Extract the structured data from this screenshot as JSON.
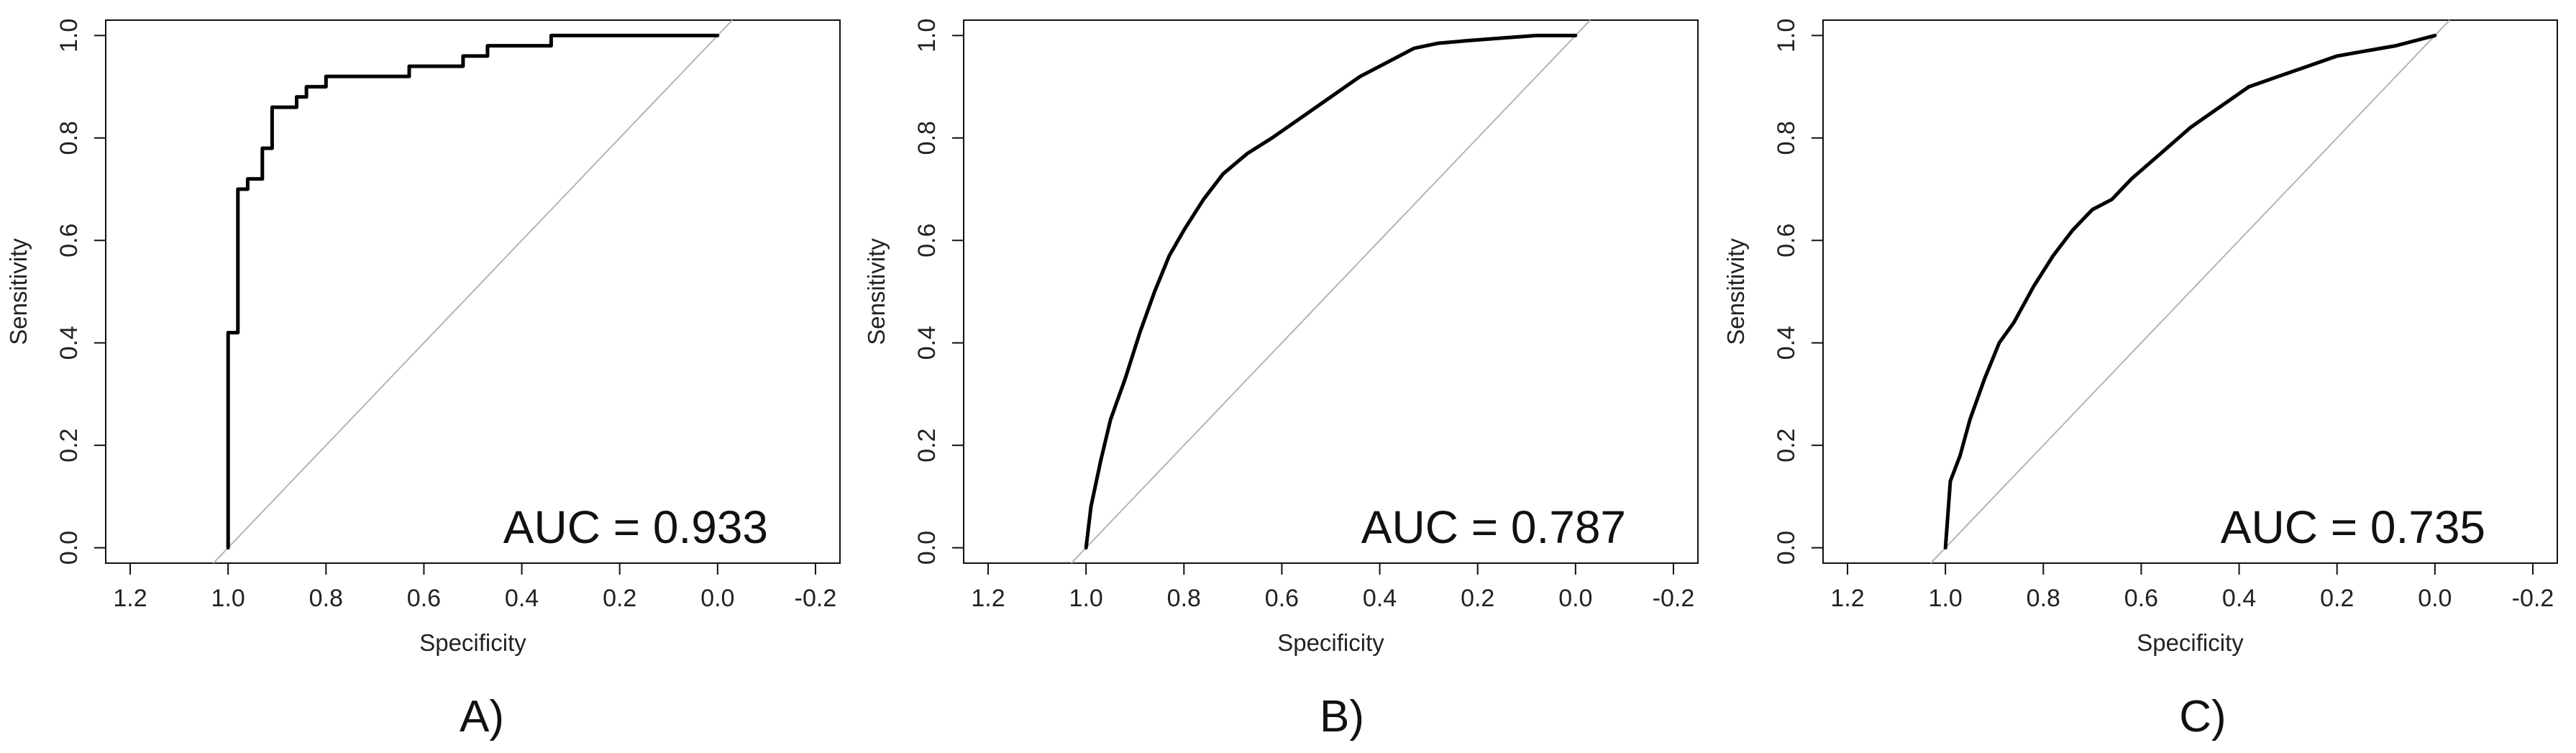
{
  "chart_data": [
    {
      "type": "line",
      "panel_label": "A)",
      "xlabel": "Specificity",
      "ylabel": "Sensitivity",
      "xlim": [
        1.25,
        -0.25
      ],
      "ylim": [
        -0.03,
        1.03
      ],
      "x_reversed": true,
      "xticks": [
        "1.2",
        "1.0",
        "0.8",
        "0.6",
        "0.4",
        "0.2",
        "0.0",
        "-0.2"
      ],
      "yticks": [
        "0.0",
        "0.2",
        "0.4",
        "0.6",
        "0.8",
        "1.0"
      ],
      "annotation": "AUC = 0.933",
      "auc": 0.933,
      "grid": false,
      "step": true,
      "series": [
        {
          "x": [
            1.0,
            1.0,
            0.98,
            0.98,
            0.96,
            0.96,
            0.93,
            0.93,
            0.91,
            0.91,
            0.86,
            0.86,
            0.84,
            0.84,
            0.8,
            0.8,
            0.63,
            0.63,
            0.52,
            0.52,
            0.47,
            0.47,
            0.34,
            0.34,
            0.0
          ],
          "y": [
            0.0,
            0.42,
            0.42,
            0.7,
            0.7,
            0.72,
            0.72,
            0.78,
            0.78,
            0.86,
            0.86,
            0.88,
            0.88,
            0.9,
            0.9,
            0.92,
            0.92,
            0.94,
            0.94,
            0.96,
            0.96,
            0.98,
            0.98,
            1.0,
            1.0
          ]
        }
      ],
      "reference_line": true
    },
    {
      "type": "line",
      "panel_label": "B)",
      "xlabel": "Specificity",
      "ylabel": "Sensitivity",
      "xlim": [
        1.25,
        -0.25
      ],
      "ylim": [
        -0.03,
        1.03
      ],
      "x_reversed": true,
      "xticks": [
        "1.2",
        "1.0",
        "0.8",
        "0.6",
        "0.4",
        "0.2",
        "0.0",
        "-0.2"
      ],
      "yticks": [
        "0.0",
        "0.2",
        "0.4",
        "0.6",
        "0.8",
        "1.0"
      ],
      "annotation": "AUC = 0.787",
      "auc": 0.787,
      "grid": false,
      "step": false,
      "series": [
        {
          "x": [
            1.0,
            0.99,
            0.97,
            0.95,
            0.92,
            0.89,
            0.86,
            0.83,
            0.8,
            0.76,
            0.72,
            0.67,
            0.62,
            0.56,
            0.5,
            0.44,
            0.38,
            0.33,
            0.28,
            0.22,
            0.15,
            0.08,
            0.0
          ],
          "y": [
            0.0,
            0.08,
            0.17,
            0.25,
            0.33,
            0.42,
            0.5,
            0.57,
            0.62,
            0.68,
            0.73,
            0.77,
            0.8,
            0.84,
            0.88,
            0.92,
            0.95,
            0.975,
            0.985,
            0.99,
            0.995,
            1.0,
            1.0
          ]
        }
      ],
      "reference_line": true
    },
    {
      "type": "line",
      "panel_label": "C)",
      "xlabel": "Specificity",
      "ylabel": "Sensitivity",
      "xlim": [
        1.25,
        -0.25
      ],
      "ylim": [
        -0.03,
        1.03
      ],
      "x_reversed": true,
      "xticks": [
        "1.2",
        "1.0",
        "0.8",
        "0.6",
        "0.4",
        "0.2",
        "0.0",
        "-0.2"
      ],
      "yticks": [
        "0.0",
        "0.2",
        "0.4",
        "0.6",
        "0.8",
        "1.0"
      ],
      "annotation": "AUC = 0.735",
      "auc": 0.735,
      "grid": false,
      "step": false,
      "series": [
        {
          "x": [
            1.0,
            0.99,
            0.97,
            0.95,
            0.92,
            0.89,
            0.86,
            0.82,
            0.78,
            0.74,
            0.7,
            0.66,
            0.62,
            0.56,
            0.5,
            0.44,
            0.38,
            0.32,
            0.26,
            0.2,
            0.14,
            0.08,
            0.04,
            0.0
          ],
          "y": [
            0.0,
            0.13,
            0.18,
            0.25,
            0.33,
            0.4,
            0.44,
            0.51,
            0.57,
            0.62,
            0.66,
            0.68,
            0.72,
            0.77,
            0.82,
            0.86,
            0.9,
            0.92,
            0.94,
            0.96,
            0.97,
            0.98,
            0.99,
            1.0
          ]
        }
      ],
      "reference_line": true
    }
  ]
}
